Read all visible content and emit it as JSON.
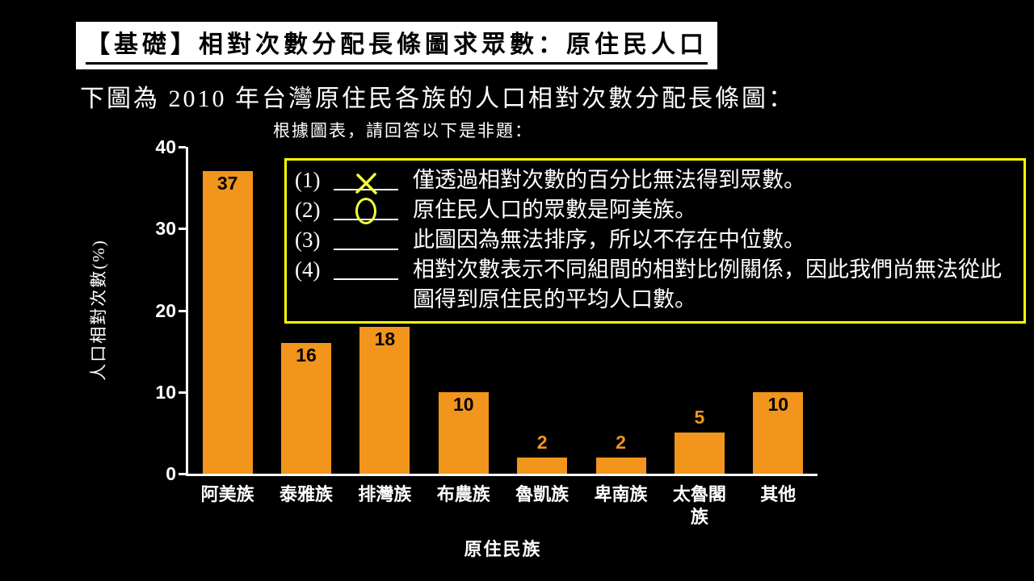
{
  "title": "【基礎】相對次數分配長條圖求眾數：原住民人口",
  "subtitle": "下圖為 2010 年台灣原住民各族的人口相對次數分配長條圖：",
  "question_intro": "根據圖表，請回答以下是非題：",
  "questions": [
    {
      "num": "(1)",
      "mark": "x",
      "text": "僅透過相對次數的百分比無法得到眾數。"
    },
    {
      "num": "(2)",
      "mark": "o",
      "text": "原住民人口的眾數是阿美族。"
    },
    {
      "num": "(3)",
      "mark": "",
      "text": "此圖因為無法排序，所以不存在中位數。"
    },
    {
      "num": "(4)",
      "mark": "",
      "text": "相對次數表示不同組間的相對比例關係，因此我們尚無法從此圖得到原住民的平均人口數。"
    }
  ],
  "chart_data": {
    "type": "bar",
    "title": "",
    "categories": [
      "阿美族",
      "泰雅族",
      "排灣族",
      "布農族",
      "魯凱族",
      "卑南族",
      "太魯閣族",
      "其他"
    ],
    "values": [
      37,
      16,
      18,
      10,
      2,
      2,
      5,
      10
    ],
    "xlabel": "原住民族",
    "ylabel": "人口相對次數(%)",
    "ylim": [
      0,
      40
    ],
    "yticks": [
      0,
      10,
      20,
      30,
      40
    ],
    "grid": false,
    "legend": "none",
    "bar_color": "#F2951C",
    "label_inside_threshold": 10
  },
  "colors": {
    "background": "#000000",
    "text": "#FFFFFF",
    "title_bg": "#FFFFFF",
    "title_text": "#000000",
    "box_border": "#FFFF00",
    "mark": "#F2FF3A",
    "bar": "#F2951C",
    "axis": "#FFFFFF"
  }
}
